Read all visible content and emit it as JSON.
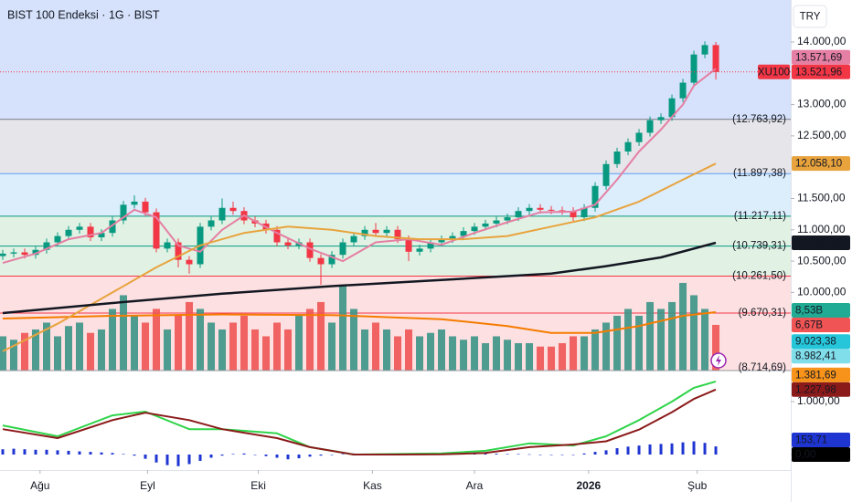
{
  "header": {
    "title": "BIST 100 Endeksi · 1G · BIST",
    "currency": "TRY"
  },
  "chart_data": [
    {
      "type": "candlestick",
      "symbol": "XU100",
      "xlim": [
        -0.25,
        71.83
      ],
      "xticks": [
        {
          "value": 3.4,
          "label": "Ağu"
        },
        {
          "value": 13.2,
          "label": "Eyl"
        },
        {
          "value": 23.3,
          "label": "Eki"
        },
        {
          "value": 33.7,
          "label": "Kas"
        },
        {
          "value": 43,
          "label": "Ara"
        },
        {
          "value": 53.4,
          "label": "2026"
        },
        {
          "value": 63.3,
          "label": "Şub"
        }
      ],
      "ylim": [
        8752,
        14670
      ],
      "yticks": [
        {
          "value": 14000,
          "label": "14.000,00"
        },
        {
          "value": 13000,
          "label": "13.000,00"
        },
        {
          "value": 12500,
          "label": "12.500,00"
        },
        {
          "value": 11500,
          "label": "11.500,00"
        },
        {
          "value": 11000,
          "label": "11.000,00"
        },
        {
          "value": 10500,
          "label": "10.500,00"
        },
        {
          "value": 10000,
          "label": "10.000,00"
        }
      ],
      "open": [
        10580,
        10620,
        10640,
        10600,
        10680,
        10800,
        10900,
        11000,
        11050,
        10880,
        10950,
        11150,
        11400,
        11450,
        11280,
        10700,
        10800,
        10520,
        10450,
        11050,
        11150,
        11350,
        11300,
        11150,
        11100,
        11000,
        10800,
        10750,
        10800,
        10550,
        10450,
        10600,
        10800,
        10900,
        11000,
        10950,
        11000,
        10850,
        10650,
        10700,
        10800,
        10850,
        10900,
        10980,
        11050,
        11100,
        11150,
        11200,
        11300,
        11350,
        11320,
        11310,
        11300,
        11200,
        11350,
        11700,
        12050,
        12250,
        12400,
        12550,
        12750,
        12800,
        13100,
        13350,
        13800,
        13950
      ],
      "high": [
        10680,
        10700,
        10700,
        10740,
        10860,
        10960,
        11060,
        11110,
        11110,
        11010,
        11210,
        11460,
        11550,
        11510,
        11340,
        10860,
        10860,
        10580,
        11110,
        11210,
        11500,
        11450,
        11360,
        11210,
        11160,
        11060,
        10860,
        10860,
        10860,
        10610,
        10660,
        10860,
        10960,
        11060,
        11110,
        11060,
        11060,
        10910,
        10760,
        10860,
        10910,
        10960,
        11040,
        11110,
        11160,
        11210,
        11260,
        11360,
        11410,
        11410,
        11380,
        11370,
        11360,
        11410,
        11760,
        12110,
        12310,
        12460,
        12610,
        12810,
        12860,
        13160,
        13410,
        13860,
        14010,
        14000
      ],
      "low": [
        10520,
        10560,
        10540,
        10540,
        10620,
        10740,
        10840,
        10940,
        10820,
        10820,
        10890,
        11090,
        11340,
        11220,
        10640,
        10640,
        10400,
        10300,
        10390,
        10990,
        11090,
        11240,
        11090,
        11040,
        10940,
        10740,
        10690,
        10690,
        10490,
        10120,
        10390,
        10540,
        10740,
        10840,
        10890,
        10890,
        10790,
        10500,
        10590,
        10640,
        10740,
        10790,
        10840,
        10920,
        10990,
        11040,
        11090,
        11140,
        11240,
        11260,
        11250,
        11240,
        11140,
        11140,
        11290,
        11640,
        11990,
        12190,
        12340,
        12490,
        12690,
        12740,
        13040,
        13290,
        13740,
        13400
      ],
      "close": [
        10620,
        10640,
        10600,
        10680,
        10800,
        10900,
        11000,
        11050,
        10880,
        10950,
        11150,
        11400,
        11450,
        11280,
        10700,
        10800,
        10520,
        10450,
        11050,
        11150,
        11350,
        11300,
        11150,
        11100,
        11000,
        10800,
        10750,
        10800,
        10550,
        10450,
        10600,
        10800,
        10900,
        11000,
        10950,
        11000,
        10850,
        10650,
        10700,
        10800,
        10850,
        10900,
        10980,
        11050,
        11100,
        11150,
        11200,
        11300,
        11350,
        11320,
        11310,
        11300,
        11200,
        11350,
        11700,
        12050,
        12250,
        12400,
        12550,
        12750,
        12800,
        13100,
        13350,
        13800,
        13950,
        13521.96
      ],
      "close_label": "13.521,96",
      "up_color": "#089981",
      "down_color": "#f23645",
      "levels": [
        {
          "value": 12763.92,
          "label": "(12.763,92)",
          "color": "#787b86"
        },
        {
          "value": 11897.38,
          "label": "(11.897,38)",
          "color": "#5b9cf6"
        },
        {
          "value": 11217.11,
          "label": "(11.217,11)",
          "color": "#089981"
        },
        {
          "value": 10739.31,
          "label": "(10.739,31)",
          "color": "#089981"
        },
        {
          "value": 10261.5,
          "label": "(10.261,50)",
          "color": "#f23645"
        },
        {
          "value": 9670.31,
          "label": "(9.670,31)",
          "color": "#f23645"
        },
        {
          "value": 8714.69,
          "label": "(8.714,69)",
          "color": "#f23645"
        }
      ],
      "zone_colors": [
        "#d6e2fb",
        "#e6e6ea",
        "#dcedfb",
        "#e1f2e4",
        "#e1f2e4",
        "#fde0e1",
        "#fde0e1",
        "#fde0e1"
      ],
      "series": [
        {
          "color": "#e57fa3",
          "x": [
            0,
            3,
            6,
            9,
            12,
            14,
            16,
            18,
            20,
            22,
            25,
            28,
            31,
            34,
            37,
            40,
            43,
            46,
            49,
            52,
            54,
            56,
            58,
            60,
            62,
            63,
            65
          ],
          "values": [
            10470,
            10620,
            10850,
            10950,
            11320,
            11200,
            10750,
            10650,
            11000,
            11230,
            10950,
            10700,
            10500,
            10800,
            10850,
            10760,
            10950,
            11120,
            11280,
            11290,
            11400,
            11800,
            12250,
            12600,
            13000,
            13300,
            13571.69
          ],
          "value_label": "13.571,69"
        },
        {
          "color": "#e8a33d",
          "x": [
            0,
            5,
            10,
            14,
            18,
            22,
            26,
            30,
            34,
            38,
            42,
            46,
            50,
            54,
            58,
            62,
            65
          ],
          "values": [
            9060,
            9500,
            10000,
            10400,
            10750,
            10950,
            11050,
            11000,
            10900,
            10850,
            10850,
            10900,
            11050,
            11200,
            11450,
            11800,
            12058.1
          ],
          "value_label": "12.058,10"
        },
        {
          "color": "#131722",
          "x": [
            0,
            10,
            20,
            30,
            40,
            50,
            55,
            60,
            65
          ],
          "values": [
            9670,
            9830,
            9980,
            10100,
            10200,
            10300,
            10420,
            10560,
            10792.52
          ],
          "value_label": "10.792,52"
        }
      ],
      "markers": [
        {
          "value": 9023.38,
          "label": "9.023,38",
          "color": "#26c6da"
        },
        {
          "value": 8982.41,
          "label": "8.982,41",
          "color": "#80deea"
        }
      ]
    },
    {
      "type": "volume",
      "xlim": [
        -0.25,
        71.83
      ],
      "ylim": [
        0,
        54.1
      ],
      "values": [
        5,
        4.5,
        5.5,
        6,
        7,
        5,
        6.5,
        7,
        5.5,
        6,
        9,
        11,
        8,
        7,
        9,
        6,
        8,
        10,
        9,
        7,
        6,
        7,
        8,
        6,
        5,
        7,
        6,
        8,
        9,
        10,
        7,
        12.3,
        9,
        6,
        7,
        6,
        5,
        6,
        5,
        5.5,
        6,
        5,
        4.5,
        5,
        4,
        5,
        4.5,
        4,
        4,
        3.5,
        3.5,
        4,
        5,
        5,
        6,
        7,
        8,
        9,
        8,
        10,
        9,
        10,
        12.8,
        11,
        9,
        6.67
      ],
      "last_label": "6,67B",
      "up_color": "#3b9587",
      "down_color": "#f05454",
      "ma": {
        "color": "#f57c00",
        "x": [
          0,
          10,
          20,
          30,
          40,
          46,
          50,
          54,
          58,
          62,
          65
        ],
        "values": [
          7.6,
          8.0,
          8.2,
          8.1,
          7.5,
          6.5,
          5.5,
          5.5,
          6.5,
          8.0,
          8.53
        ],
        "value_label": "8,53B",
        "label_color": "#22ab94"
      }
    },
    {
      "type": "macd",
      "xlim": [
        -0.25,
        71.83
      ],
      "ylim": [
        -293,
        1586
      ],
      "yticks": [
        {
          "value": 1000,
          "label": "1.000,00"
        }
      ],
      "zero": {
        "value": 0,
        "label": "0,00"
      },
      "series": [
        {
          "color": "#2fd44a",
          "x": [
            0,
            5,
            10,
            13,
            17,
            20,
            25,
            28,
            32,
            36,
            40,
            44,
            48,
            52,
            55,
            58,
            61,
            63,
            65
          ],
          "values": [
            550,
            345,
            740,
            810,
            480,
            480,
            400,
            140,
            0,
            10,
            20,
            70,
            210,
            170,
            345,
            650,
            1000,
            1260,
            1381.69
          ],
          "value_label": "1.381,69",
          "label_color": "#f7931a"
        },
        {
          "color": "#8b1a1a",
          "x": [
            0,
            5,
            10,
            13,
            17,
            20,
            25,
            28,
            32,
            36,
            40,
            44,
            48,
            52,
            55,
            58,
            61,
            63,
            65
          ],
          "values": [
            480,
            310,
            650,
            790,
            650,
            480,
            310,
            140,
            0,
            0,
            5,
            30,
            140,
            190,
            250,
            470,
            800,
            1050,
            1227.98
          ],
          "value_label": "1.227,98",
          "label_color": "#8b1a1a"
        }
      ],
      "histogram": {
        "color": "#1f35d1",
        "values": [
          100,
          110,
          100,
          90,
          90,
          80,
          70,
          60,
          50,
          40,
          30,
          10,
          -20,
          -80,
          -150,
          -200,
          -220,
          -180,
          -120,
          -60,
          -20,
          10,
          20,
          0,
          -30,
          -60,
          -90,
          -70,
          -40,
          -20,
          0,
          10,
          20,
          10,
          5,
          0,
          -5,
          0,
          5,
          10,
          10,
          10,
          15,
          20,
          20,
          15,
          10,
          10,
          5,
          0,
          0,
          -5,
          0,
          20,
          50,
          80,
          120,
          150,
          170,
          190,
          200,
          210,
          230,
          250,
          220,
          153.71
        ],
        "value_label": "153,71"
      }
    }
  ]
}
